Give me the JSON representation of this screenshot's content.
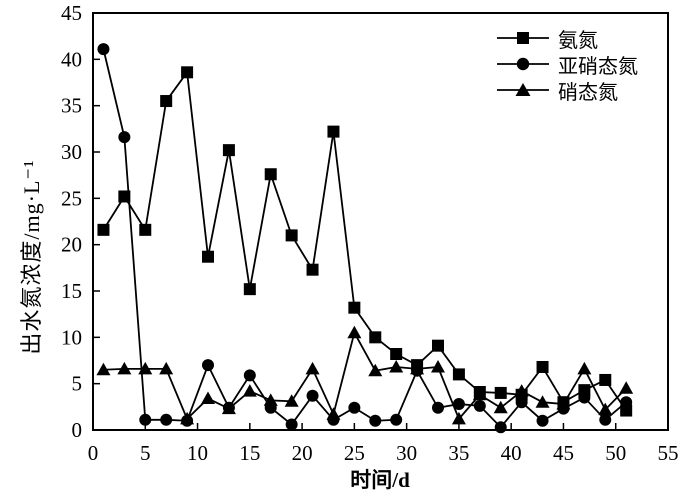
{
  "figure": {
    "xlabel": "时间/d",
    "ylabel": "出水氮浓度/mg·L⁻¹"
  },
  "chart_data": {
    "type": "line",
    "title": "",
    "xlabel": "时间/d",
    "ylabel": "出水氮浓度/mg·L⁻¹",
    "xlim": [
      0,
      55
    ],
    "ylim": [
      0,
      45
    ],
    "xticks": [
      0,
      5,
      10,
      15,
      20,
      25,
      30,
      35,
      40,
      45,
      50,
      55
    ],
    "yticks": [
      0,
      5,
      10,
      15,
      20,
      25,
      30,
      35,
      40,
      45
    ],
    "grid": false,
    "legend_position": "top-right",
    "colors": {
      "series": "#000000",
      "frame": "#000000",
      "background": "#ffffff"
    },
    "x": [
      1,
      3,
      5,
      7,
      9,
      11,
      13,
      15,
      17,
      19,
      21,
      23,
      25,
      27,
      29,
      31,
      33,
      35,
      37,
      39,
      41,
      43,
      45,
      47,
      49,
      51
    ],
    "series": [
      {
        "name": "氨氮",
        "marker": "square",
        "values": [
          21.6,
          25.2,
          21.6,
          35.5,
          38.6,
          18.7,
          30.2,
          15.2,
          27.6,
          21.0,
          17.3,
          32.2,
          13.2,
          10.0,
          8.2,
          7.0,
          9.1,
          6.0,
          4.1,
          4.0,
          3.8,
          6.8,
          3.0,
          4.3,
          5.4,
          2.1
        ]
      },
      {
        "name": "亚硝态氮",
        "marker": "circle",
        "values": [
          41.1,
          31.6,
          1.1,
          1.1,
          1.0,
          7.0,
          2.4,
          5.9,
          2.4,
          0.6,
          3.7,
          1.1,
          2.4,
          1.0,
          1.1,
          6.4,
          2.4,
          2.8,
          2.6,
          0.3,
          3.0,
          1.0,
          2.3,
          3.5,
          1.1,
          3.0
        ]
      },
      {
        "name": "硝态氮",
        "marker": "triangle",
        "values": [
          6.5,
          6.6,
          6.6,
          6.6,
          1.2,
          3.4,
          2.3,
          4.2,
          3.2,
          3.1,
          6.6,
          1.7,
          10.5,
          6.4,
          6.8,
          6.6,
          6.8,
          1.2,
          3.8,
          2.4,
          4.2,
          3.0,
          2.8,
          6.6,
          2.2,
          4.5
        ]
      }
    ]
  }
}
